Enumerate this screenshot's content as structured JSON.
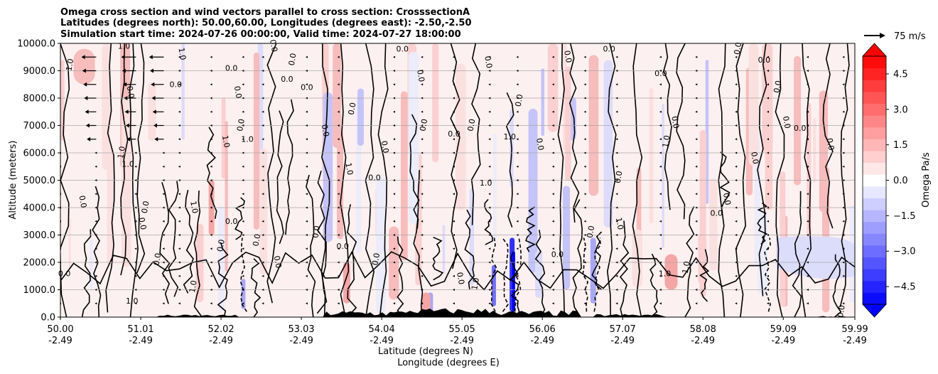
{
  "chart_data": {
    "type": "contour cross-section",
    "title_lines": [
      "Omega cross section and wind vectors parallel to cross section: CrosssectionA",
      "Latitudes (degrees north): 50.00,60.00, Longitudes (degrees east): -2.50,-2.50",
      "Simulation start time: 2024-07-26 00:00:00, Valid time: 2024-07-27 18:00:00"
    ],
    "ylabel": "Altitude (meters)",
    "xlabel_lat": "Latitude (degrees N)",
    "xlabel_lon": "Longitude (degrees E)",
    "ylim": [
      0,
      10000
    ],
    "y_ticks": [
      0,
      1000,
      2000,
      3000,
      4000,
      5000,
      6000,
      7000,
      8000,
      9000,
      10000
    ],
    "y_tick_labels": [
      "0.0",
      "1000.0",
      "2000.0",
      "3000.0",
      "4000.0",
      "5000.0",
      "6000.0",
      "7000.0",
      "8000.0",
      "9000.0",
      "10000.0"
    ],
    "xlim": [
      50.0,
      59.99
    ],
    "x_ticks": [
      50.0,
      51.01,
      52.02,
      53.03,
      54.04,
      55.05,
      56.06,
      57.07,
      58.08,
      59.09,
      59.99
    ],
    "x_tick_lat_labels": [
      "50.00",
      "51.01",
      "52.02",
      "53.03",
      "54.04",
      "55.05",
      "56.06",
      "57.07",
      "58.08",
      "59.09",
      "59.99"
    ],
    "x_tick_lon_labels": [
      "-2.49",
      "-2.49",
      "-2.49",
      "-2.49",
      "-2.49",
      "-2.49",
      "-2.49",
      "-2.49",
      "-2.49",
      "-2.49",
      "-2.49"
    ],
    "colorbar": {
      "label": "Omega Pa/s",
      "range": [
        -5.25,
        5.25
      ],
      "extend": "both",
      "ticks": [
        -4.5,
        -3.0,
        -1.5,
        0.0,
        1.5,
        3.0,
        4.5
      ],
      "tick_labels": [
        "−4.5",
        "−3.0",
        "−1.5",
        "0.0",
        "1.5",
        "3.0",
        "4.5"
      ],
      "colormap": "bwr"
    },
    "vector_key": {
      "label": "75 m/s",
      "speed": 75
    },
    "contour_levels": [
      -1.0,
      0.0,
      1.0
    ],
    "contour_labels": [
      {
        "text": "0.0",
        "lat": 50.05,
        "alt": 1500
      },
      {
        "text": "0.0",
        "lat": 50.25,
        "alt": 4200
      },
      {
        "text": "1.0",
        "lat": 50.15,
        "alt": 9200
      },
      {
        "text": "1.0",
        "lat": 50.8,
        "alt": 9800
      },
      {
        "text": "1.0",
        "lat": 50.8,
        "alt": 6000
      },
      {
        "text": "0.0",
        "lat": 50.85,
        "alt": 8200
      },
      {
        "text": "1.0",
        "lat": 50.85,
        "alt": 5500
      },
      {
        "text": "0.0",
        "lat": 51.0,
        "alt": 3400
      },
      {
        "text": "0.0",
        "lat": 51.1,
        "alt": 4000
      },
      {
        "text": "1.0",
        "lat": 50.9,
        "alt": 500
      },
      {
        "text": "0.0",
        "lat": 51.25,
        "alt": 2100
      },
      {
        "text": "1.0",
        "lat": 51.5,
        "alt": 9600
      },
      {
        "text": "0.0",
        "lat": 51.45,
        "alt": 8400
      },
      {
        "text": "1.0",
        "lat": 51.65,
        "alt": 4000
      },
      {
        "text": "1.0",
        "lat": 51.7,
        "alt": 1100
      },
      {
        "text": "0.0",
        "lat": 52.15,
        "alt": 3400
      },
      {
        "text": "0.0",
        "lat": 52.05,
        "alt": 2600
      },
      {
        "text": "1.0",
        "lat": 52.05,
        "alt": 6400
      },
      {
        "text": "0.0",
        "lat": 52.15,
        "alt": 9000
      },
      {
        "text": "0.0",
        "lat": 52.2,
        "alt": 8200
      },
      {
        "text": "0.0",
        "lat": 52.3,
        "alt": 7000
      },
      {
        "text": "1.0",
        "lat": 52.35,
        "alt": 6400
      },
      {
        "text": "0.0",
        "lat": 52.5,
        "alt": 2800
      },
      {
        "text": "0.0",
        "lat": 52.7,
        "alt": 2000
      },
      {
        "text": "0.0",
        "lat": 52.85,
        "alt": 8600
      },
      {
        "text": "0.0",
        "lat": 52.65,
        "alt": 9900
      },
      {
        "text": "0.0",
        "lat": 52.95,
        "alt": 9400
      },
      {
        "text": "0.0",
        "lat": 53.1,
        "alt": 8300
      },
      {
        "text": "0.0",
        "lat": 53.25,
        "alt": 3100
      },
      {
        "text": "0.0",
        "lat": 53.3,
        "alt": 6800
      },
      {
        "text": "0.0",
        "lat": 53.55,
        "alt": 2500
      },
      {
        "text": "1.0",
        "lat": 53.6,
        "alt": 5400
      },
      {
        "text": "0.0",
        "lat": 53.7,
        "alt": 7600
      },
      {
        "text": "0.0",
        "lat": 53.95,
        "alt": 5000
      },
      {
        "text": "0.0",
        "lat": 54.0,
        "alt": 2100
      },
      {
        "text": "0.0",
        "lat": 54.05,
        "alt": 6200
      },
      {
        "text": "0.0",
        "lat": 54.3,
        "alt": 9700
      },
      {
        "text": "0.0",
        "lat": 54.5,
        "alt": 8800
      },
      {
        "text": "0.0",
        "lat": 54.6,
        "alt": 7000
      },
      {
        "text": "0.0",
        "lat": 54.95,
        "alt": 6600
      },
      {
        "text": "0.0",
        "lat": 55.2,
        "alt": 7000
      },
      {
        "text": "0.0",
        "lat": 55.35,
        "alt": 9300
      },
      {
        "text": "1.0",
        "lat": 55.35,
        "alt": 4800
      },
      {
        "text": "0.0",
        "lat": 55.0,
        "alt": 1400
      },
      {
        "text": "1.0",
        "lat": 55.25,
        "alt": 1200
      },
      {
        "text": "1.0",
        "lat": 55.65,
        "alt": 6500
      },
      {
        "text": "0.0",
        "lat": 55.8,
        "alt": 7900
      },
      {
        "text": "0.0",
        "lat": 56.0,
        "alt": 6300
      },
      {
        "text": "0.0",
        "lat": 56.25,
        "alt": 2200
      },
      {
        "text": "0.0",
        "lat": 56.35,
        "alt": 9500
      },
      {
        "text": "0.0",
        "lat": 56.7,
        "alt": 3100
      },
      {
        "text": "0.0",
        "lat": 56.9,
        "alt": 9700
      },
      {
        "text": "0.0",
        "lat": 57.05,
        "alt": 5100
      },
      {
        "text": "1.0",
        "lat": 57.0,
        "alt": 3400
      },
      {
        "text": "0.0",
        "lat": 57.55,
        "alt": 8800
      },
      {
        "text": "0.0",
        "lat": 57.7,
        "alt": 7100
      },
      {
        "text": "1.0",
        "lat": 57.65,
        "alt": 6400
      },
      {
        "text": "1.0",
        "lat": 57.6,
        "alt": 1500
      },
      {
        "text": "1.0",
        "lat": 57.9,
        "alt": 1800
      },
      {
        "text": "0.0",
        "lat": 58.35,
        "alt": 4300
      },
      {
        "text": "0.0",
        "lat": 58.25,
        "alt": 3700
      },
      {
        "text": "0.0",
        "lat": 58.7,
        "alt": 5800
      },
      {
        "text": "0.0",
        "lat": 58.55,
        "alt": 9800
      },
      {
        "text": "0.0",
        "lat": 58.85,
        "alt": 9300
      },
      {
        "text": "0.0",
        "lat": 59.05,
        "alt": 8400
      },
      {
        "text": "0.0",
        "lat": 59.1,
        "alt": 7100
      },
      {
        "text": "0.0",
        "lat": 59.3,
        "alt": 6800
      },
      {
        "text": "0.0",
        "lat": 59.65,
        "alt": 6300
      },
      {
        "text": "0.0",
        "lat": 59.85,
        "alt": 200
      }
    ]
  }
}
